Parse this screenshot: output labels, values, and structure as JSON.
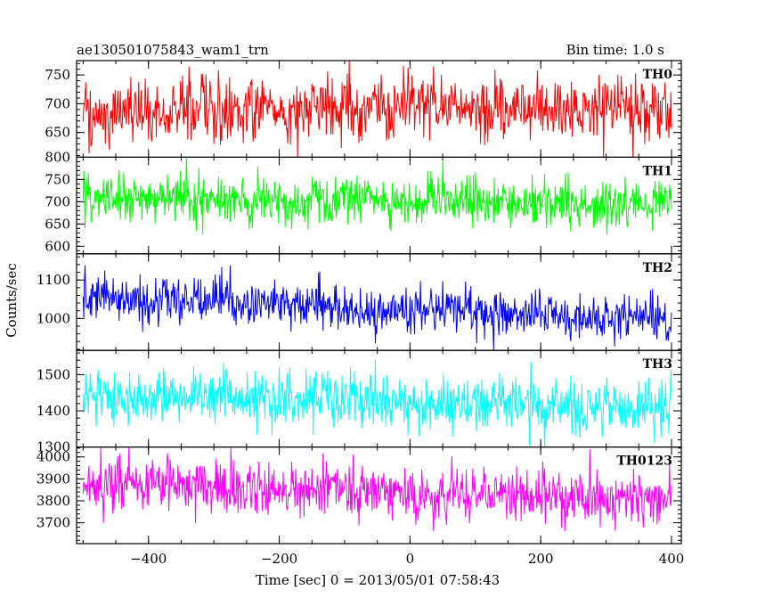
{
  "chart_data": {
    "type": "line",
    "title_left": "ae130501075843_wam1_trn",
    "title_right": "Bin time: 1.0 s",
    "xlabel": "Time [sec] 0 = 2013/05/01 07:58:43",
    "ylabel": "Counts/sec",
    "xlim": [
      -510,
      415
    ],
    "x_range": [
      -500,
      400
    ],
    "x_ticks": [
      -400,
      -200,
      0,
      200,
      400
    ],
    "x_tick_labels": [
      "−400",
      "−200",
      "0",
      "200",
      "400"
    ],
    "bin_time": 1.0,
    "panels": [
      {
        "label": "TH0",
        "color": "#ff0000",
        "ylim": [
          607,
          775
        ],
        "y_ticks": [
          650,
          700,
          750
        ],
        "y_tick_labels": [
          "650",
          "700",
          "750"
        ],
        "mean": 690,
        "mean_end": 690,
        "sigma": 27
      },
      {
        "label": "TH1",
        "color": "#00ff00",
        "ylim": [
          583,
          800
        ],
        "y_ticks": [
          600,
          650,
          700,
          750,
          800
        ],
        "y_tick_labels": [
          "600",
          "650",
          "700",
          "750",
          "800"
        ],
        "mean": 705,
        "mean_end": 700,
        "sigma": 28
      },
      {
        "label": "TH2",
        "color": "#0000ff",
        "ylim": [
          917,
          1168
        ],
        "y_ticks": [
          1000,
          1100
        ],
        "y_tick_labels": [
          "1000",
          "1100"
        ],
        "mean": 1055,
        "mean_end": 1000,
        "sigma": 30
      },
      {
        "label": "TH3",
        "color": "#00ffff",
        "ylim": [
          1300,
          1567
        ],
        "y_ticks": [
          1300,
          1400,
          1500
        ],
        "y_tick_labels": [
          "1300",
          "1400",
          "1500"
        ],
        "mean": 1445,
        "mean_end": 1410,
        "sigma": 38
      },
      {
        "label": "TH0123",
        "color": "#ff00ff",
        "ylim": [
          3605,
          4045
        ],
        "y_ticks": [
          3700,
          3800,
          3900,
          4000
        ],
        "y_tick_labels": [
          "3700",
          "3800",
          "3900",
          "4000"
        ],
        "mean": 3890,
        "mean_end": 3790,
        "sigma": 60
      }
    ]
  }
}
